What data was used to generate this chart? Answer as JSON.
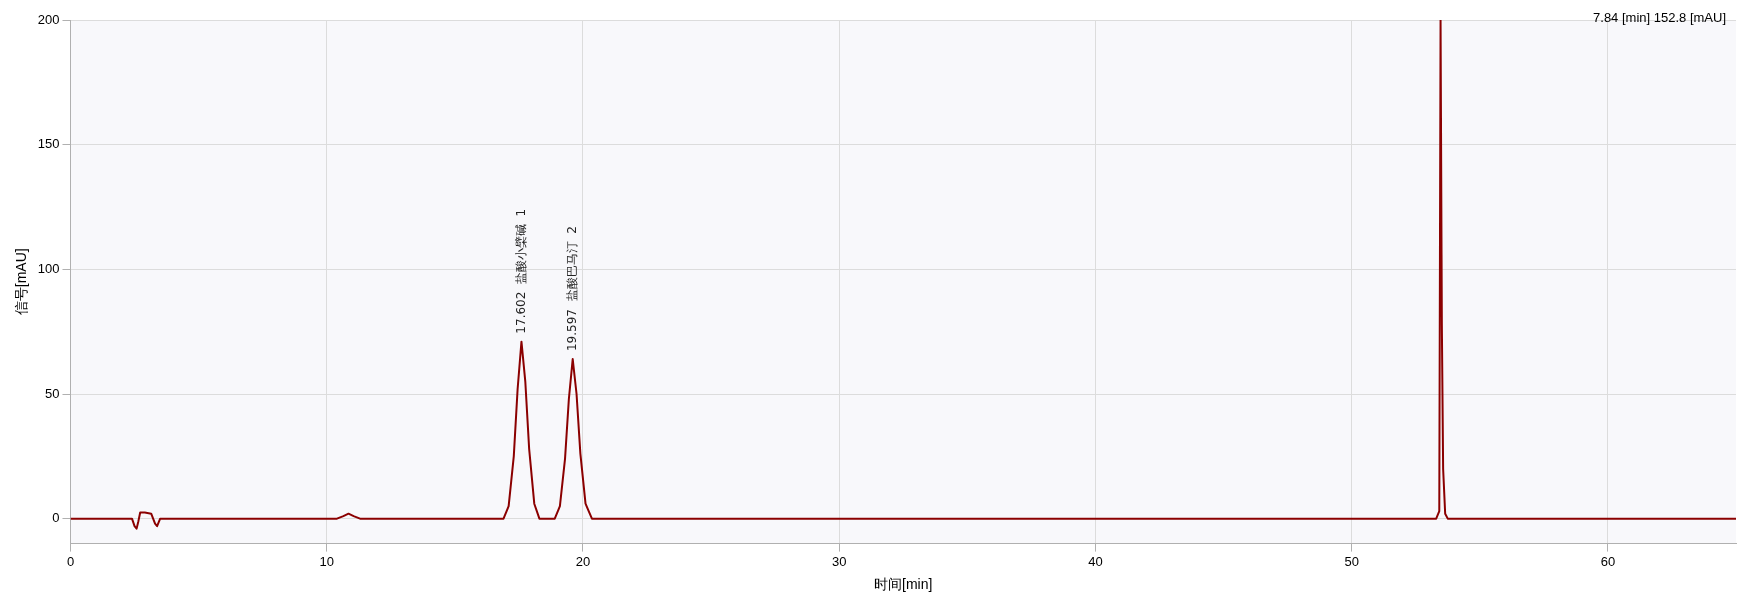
{
  "chart_data": {
    "type": "line",
    "xlabel": "时间[min]",
    "ylabel": "信号[mAU]",
    "x": [
      0,
      2.4,
      2.5,
      2.58,
      2.65,
      2.72,
      2.9,
      3.15,
      3.3,
      3.38,
      3.5,
      6,
      10.4,
      10.65,
      10.85,
      11.05,
      11.3,
      16.9,
      17.1,
      17.3,
      17.45,
      17.6,
      17.75,
      17.9,
      18.1,
      18.3,
      18.9,
      19.1,
      19.3,
      19.45,
      19.6,
      19.75,
      19.9,
      20.1,
      20.35,
      53.3,
      53.42,
      53.47,
      53.52,
      53.57,
      53.65,
      53.75,
      65
    ],
    "series": [
      {
        "color": "#8b0000",
        "values": [
          0,
          0,
          -3,
          -4,
          -1,
          2.5,
          2.5,
          2,
          -2,
          -3,
          0,
          0,
          0,
          1,
          2,
          1,
          0,
          0,
          5,
          25,
          52,
          71,
          55,
          28,
          6,
          0,
          0,
          5,
          24,
          48,
          64,
          50,
          26,
          6,
          0,
          0,
          3,
          200,
          78,
          20,
          2,
          0,
          0
        ]
      }
    ],
    "xlim": [
      0,
      65
    ],
    "xticks": [
      0,
      10,
      20,
      30,
      40,
      50,
      60
    ],
    "ylim": [
      -10,
      200
    ],
    "yticks": [
      0,
      50,
      100,
      150,
      200
    ],
    "grid": true,
    "legend": false,
    "marker": "none",
    "line_style": "solid",
    "annotations": [
      {
        "text": "17.602  盐酸小檗碱  1",
        "x": 17.602,
        "y": 71
      },
      {
        "text": "19.597  盐酸巴马汀  2",
        "x": 19.597,
        "y": 64
      },
      "7.84 [min]  152.8 [mAU]"
    ]
  }
}
